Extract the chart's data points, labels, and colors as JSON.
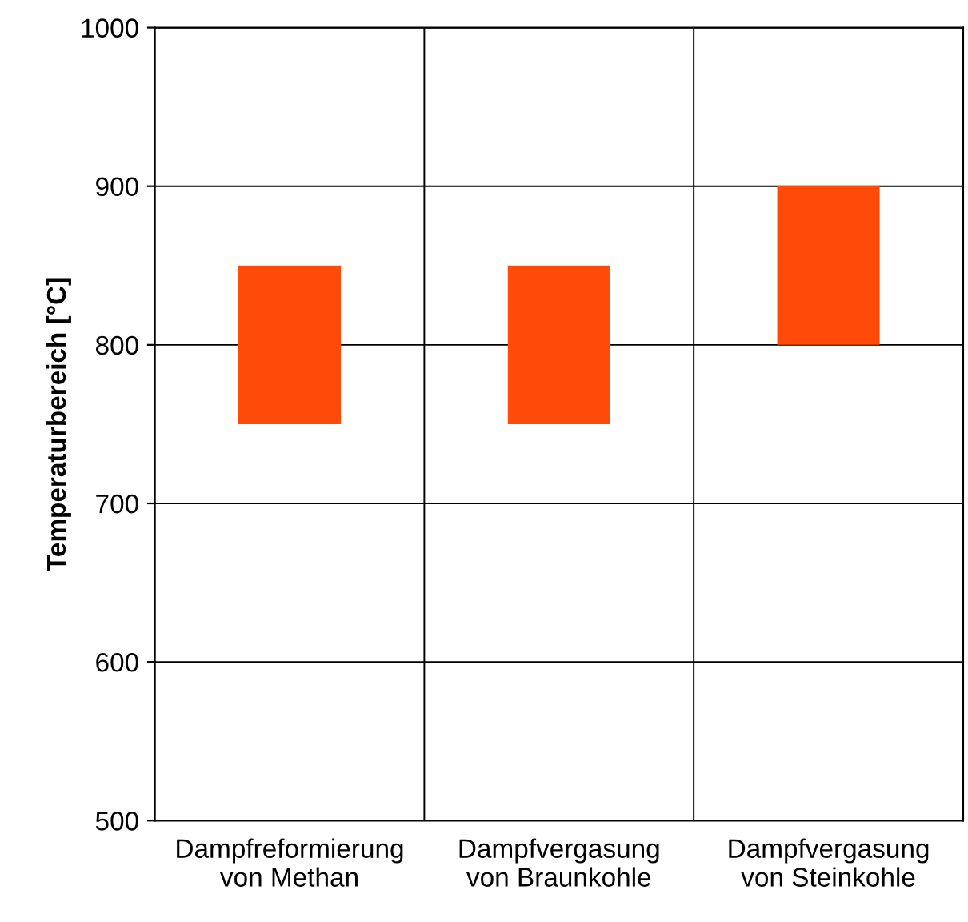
{
  "chart_data": {
    "type": "bar",
    "ylabel": "Temperaturbereich [°C]",
    "categories": [
      "Dampfreformierung\nvon Methan",
      "Dampfvergasung\nvon Braunkohle",
      "Dampfvergasung\nvon Steinkohle"
    ],
    "values": [
      100,
      100,
      100
    ],
    "base": [
      750,
      750,
      800
    ],
    "color": "#ff4a0a",
    "ylim": [
      500,
      1000
    ],
    "yticks": [
      500,
      600,
      700,
      800,
      900,
      1000
    ],
    "grid": true
  }
}
